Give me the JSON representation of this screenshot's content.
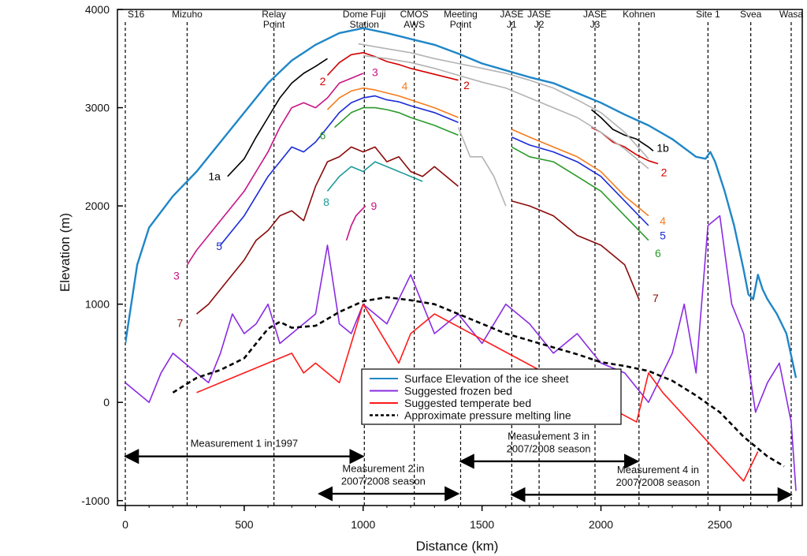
{
  "chart_data": {
    "type": "line",
    "xlabel": "Distance (km)",
    "ylabel": "Elevation (m)",
    "xlim": [
      0,
      2830
    ],
    "ylim": [
      -1050,
      4000
    ],
    "x_ticks": [
      0,
      500,
      1000,
      1500,
      2000,
      2500
    ],
    "y_ticks": [
      -1000,
      0,
      1000,
      2000,
      3000,
      4000
    ],
    "grid": false,
    "legend_position": "bottom-center",
    "stations": [
      {
        "x": 0,
        "lines": [
          "S16"
        ]
      },
      {
        "x": 260,
        "lines": [
          "Mizuho"
        ]
      },
      {
        "x": 625,
        "lines": [
          "Relay",
          "Point"
        ]
      },
      {
        "x": 1005,
        "lines": [
          "Dome Fuji",
          "Station"
        ]
      },
      {
        "x": 1215,
        "lines": [
          "CMOS",
          "AWS"
        ]
      },
      {
        "x": 1410,
        "lines": [
          "Meeting",
          "Point"
        ]
      },
      {
        "x": 1625,
        "lines": [
          "JASE",
          "J1"
        ]
      },
      {
        "x": 1740,
        "lines": [
          "JASE",
          "J2"
        ]
      },
      {
        "x": 1975,
        "lines": [
          "JASE",
          "J3"
        ]
      },
      {
        "x": 2160,
        "lines": [
          "Kohnen"
        ]
      },
      {
        "x": 2450,
        "lines": [
          "Site 1"
        ]
      },
      {
        "x": 2630,
        "lines": [
          "Svea"
        ]
      },
      {
        "x": 2800,
        "lines": [
          "Wasa"
        ]
      }
    ],
    "series": [
      {
        "name": "Surface Elevation of the ice sheet",
        "color": "#1f86c8",
        "x": [
          0,
          50,
          100,
          200,
          300,
          400,
          500,
          600,
          700,
          800,
          900,
          1000,
          1100,
          1200,
          1300,
          1400,
          1500,
          1600,
          1700,
          1800,
          1900,
          2000,
          2100,
          2200,
          2300,
          2400,
          2440,
          2460,
          2480,
          2520,
          2560,
          2600,
          2620,
          2640,
          2660,
          2680,
          2700,
          2740,
          2780,
          2820
        ],
        "y": [
          600,
          1400,
          1780,
          2100,
          2350,
          2650,
          2950,
          3250,
          3480,
          3640,
          3760,
          3810,
          3760,
          3700,
          3640,
          3550,
          3450,
          3380,
          3310,
          3250,
          3150,
          3050,
          2930,
          2820,
          2680,
          2500,
          2480,
          2550,
          2450,
          2150,
          1800,
          1350,
          1100,
          1050,
          1300,
          1150,
          1050,
          900,
          700,
          250
        ]
      },
      {
        "name": "Suggested frozen bed",
        "color": "#8a2be2",
        "x": [
          0,
          50,
          100,
          150,
          200,
          250,
          300,
          350,
          400,
          450,
          500,
          550,
          600,
          650,
          700,
          800,
          850,
          900,
          950,
          1000,
          1100,
          1200,
          1300,
          1400,
          1500,
          1600,
          1700,
          1800,
          1900,
          2000,
          2100,
          2200,
          2300,
          2350,
          2400,
          2450,
          2500,
          2550,
          2600,
          2650,
          2700,
          2750,
          2800,
          2820
        ],
        "y": [
          200,
          100,
          0,
          300,
          500,
          400,
          300,
          200,
          500,
          900,
          700,
          800,
          1000,
          600,
          700,
          900,
          1600,
          800,
          700,
          1000,
          800,
          1300,
          700,
          900,
          600,
          1000,
          800,
          500,
          700,
          400,
          300,
          0,
          500,
          1000,
          300,
          1800,
          1900,
          1000,
          700,
          -100,
          200,
          400,
          -200,
          -900
        ]
      },
      {
        "name": "Suggested temperate bed",
        "color": "#ff1a1a",
        "x": [
          300,
          400,
          700,
          750,
          800,
          900,
          950,
          1000,
          1050,
          1150,
          1200,
          1300,
          2150,
          2200,
          2260,
          2600,
          2660
        ],
        "y": [
          100,
          200,
          500,
          300,
          400,
          200,
          600,
          1000,
          800,
          400,
          700,
          900,
          -200,
          300,
          100,
          -800,
          -500
        ]
      },
      {
        "name": "Approximate pressure melting line",
        "color": "#000000",
        "dash": true,
        "x": [
          200,
          300,
          400,
          500,
          550,
          600,
          650,
          700,
          800,
          900,
          1000,
          1100,
          1200,
          1300,
          1400,
          1500,
          1600,
          1700,
          1800,
          1900,
          2000,
          2100,
          2200,
          2300,
          2400,
          2500,
          2600,
          2700,
          2770
        ],
        "y": [
          100,
          250,
          330,
          450,
          600,
          750,
          820,
          760,
          780,
          920,
          1030,
          1070,
          1040,
          1000,
          900,
          800,
          700,
          630,
          560,
          490,
          410,
          370,
          320,
          220,
          70,
          -100,
          -350,
          -550,
          -650
        ]
      },
      {
        "name": "",
        "color": "#000000",
        "label": "1a",
        "x": [
          430,
          500,
          550,
          600,
          650,
          700,
          750,
          800,
          850
        ],
        "y": [
          2300,
          2480,
          2700,
          2900,
          3100,
          3250,
          3350,
          3420,
          3500
        ]
      },
      {
        "name": "",
        "color": "#000000",
        "label": "1b",
        "x": [
          1960,
          2000,
          2050,
          2100,
          2150,
          2200,
          2220
        ],
        "y": [
          2980,
          2900,
          2780,
          2720,
          2680,
          2600,
          2560
        ]
      },
      {
        "name": "",
        "color": "#d40000",
        "label": "2",
        "x": [
          850,
          900,
          950,
          1000,
          1050,
          1100,
          1150,
          1200,
          1300,
          1400
        ],
        "y": [
          3330,
          3460,
          3540,
          3560,
          3520,
          3470,
          3440,
          3400,
          3340,
          3280
        ]
      },
      {
        "name": "",
        "color": "#d40000",
        "label": "2",
        "x": [
          1960,
          2000,
          2050,
          2100,
          2150,
          2200,
          2240
        ],
        "y": [
          2800,
          2750,
          2650,
          2600,
          2520,
          2460,
          2430
        ]
      },
      {
        "name": "",
        "color": "#b3b3b3",
        "label": "",
        "x": [
          980,
          1100,
          1200,
          1300,
          1400,
          1500,
          1600,
          1700,
          1800,
          1900,
          2000,
          2100,
          2200
        ],
        "y": [
          3650,
          3600,
          3560,
          3500,
          3450,
          3400,
          3350,
          3280,
          3200,
          3080,
          2950,
          2750,
          2480
        ]
      },
      {
        "name": "",
        "color": "#b3b3b3",
        "label": "",
        "x": [
          1000,
          1100,
          1200,
          1300,
          1400,
          1500,
          1600,
          1700,
          1800,
          1900,
          2000,
          2100,
          2200
        ],
        "y": [
          3530,
          3500,
          3460,
          3400,
          3330,
          3260,
          3200,
          3100,
          3000,
          2900,
          2750,
          2580,
          2380
        ]
      },
      {
        "name": "",
        "color": "#b3b3b3",
        "label": "",
        "x": [
          1400,
          1450,
          1500,
          1550,
          1600
        ],
        "y": [
          2800,
          2500,
          2500,
          2300,
          2000
        ]
      },
      {
        "name": "",
        "color": "#c71585",
        "label": "3",
        "x": [
          260,
          300,
          350,
          400,
          450,
          500,
          550,
          600,
          650,
          700,
          750,
          800,
          850,
          900,
          950,
          1000
        ],
        "y": [
          1400,
          1550,
          1700,
          1850,
          2000,
          2150,
          2350,
          2550,
          2800,
          3000,
          3050,
          3000,
          3100,
          3250,
          3300,
          3350
        ]
      },
      {
        "name": "",
        "color": "#f57c1f",
        "label": "4",
        "x": [
          850,
          900,
          950,
          1000,
          1050,
          1100,
          1150,
          1200,
          1300,
          1400
        ],
        "y": [
          2980,
          3100,
          3170,
          3200,
          3180,
          3150,
          3120,
          3080,
          3000,
          2900
        ]
      },
      {
        "name": "",
        "color": "#f57c1f",
        "label": "4",
        "x": [
          1625,
          1700,
          1800,
          1900,
          2000,
          2100,
          2200
        ],
        "y": [
          2780,
          2700,
          2600,
          2500,
          2350,
          2100,
          1900
        ]
      },
      {
        "name": "",
        "color": "#1a2bd6",
        "label": "5",
        "x": [
          400,
          450,
          500,
          550,
          600,
          650,
          700,
          750,
          800,
          850,
          900,
          950,
          1000,
          1050,
          1100,
          1150,
          1200,
          1300,
          1400
        ],
        "y": [
          1600,
          1750,
          1900,
          2100,
          2300,
          2450,
          2600,
          2550,
          2650,
          2800,
          2950,
          3050,
          3100,
          3120,
          3080,
          3060,
          3020,
          2950,
          2850
        ]
      },
      {
        "name": "",
        "color": "#1a2bd6",
        "label": "5",
        "x": [
          1625,
          1700,
          1800,
          1900,
          2000,
          2100,
          2200
        ],
        "y": [
          2700,
          2620,
          2550,
          2450,
          2300,
          2050,
          1800
        ]
      },
      {
        "name": "",
        "color": "#2a9a2a",
        "label": "6",
        "x": [
          880,
          950,
          1000,
          1050,
          1100,
          1150,
          1200,
          1300,
          1400
        ],
        "y": [
          2800,
          2950,
          3000,
          3000,
          2980,
          2950,
          2900,
          2820,
          2720
        ]
      },
      {
        "name": "",
        "color": "#2a9a2a",
        "label": "6",
        "x": [
          1625,
          1700,
          1800,
          1900,
          2000,
          2100,
          2200
        ],
        "y": [
          2600,
          2500,
          2450,
          2300,
          2150,
          1900,
          1650
        ]
      },
      {
        "name": "",
        "color": "#8b0a0a",
        "label": "7",
        "x": [
          300,
          350,
          400,
          450,
          500,
          550,
          600,
          650,
          700,
          750,
          800,
          850,
          900,
          950,
          1000,
          1050,
          1100,
          1150,
          1200,
          1250,
          1300,
          1350,
          1400
        ],
        "y": [
          900,
          1000,
          1150,
          1300,
          1450,
          1650,
          1750,
          1900,
          1950,
          1850,
          2200,
          2450,
          2500,
          2600,
          2550,
          2600,
          2450,
          2500,
          2350,
          2300,
          2400,
          2300,
          2200
        ]
      },
      {
        "name": "",
        "color": "#8b0a0a",
        "label": "7",
        "x": [
          1625,
          1700,
          1800,
          1900,
          2000,
          2100,
          2160
        ],
        "y": [
          2050,
          2000,
          1900,
          1700,
          1600,
          1400,
          1050
        ]
      },
      {
        "name": "",
        "color": "#1f9a9a",
        "label": "8",
        "x": [
          850,
          900,
          950,
          1000,
          1050,
          1100,
          1150,
          1200,
          1250
        ],
        "y": [
          2150,
          2300,
          2400,
          2350,
          2450,
          2400,
          2350,
          2300,
          2250
        ]
      },
      {
        "name": "",
        "color": "#c71585",
        "label": "9",
        "x": [
          930,
          950,
          970,
          990,
          1010
        ],
        "y": [
          1650,
          1800,
          1900,
          1950,
          2000
        ]
      }
    ],
    "curve_labels": [
      {
        "text": "1a",
        "x": 375,
        "y": 2260,
        "color": "#000000"
      },
      {
        "text": "2",
        "x": 830,
        "y": 3230,
        "color": "#d40000"
      },
      {
        "text": "3",
        "x": 1050,
        "y": 3320,
        "color": "#c71585"
      },
      {
        "text": "4",
        "x": 1175,
        "y": 3180,
        "color": "#f57c1f"
      },
      {
        "text": "2",
        "x": 1435,
        "y": 3190,
        "color": "#d40000"
      },
      {
        "text": "6",
        "x": 830,
        "y": 2680,
        "color": "#2a9a2a"
      },
      {
        "text": "8",
        "x": 845,
        "y": 2000,
        "color": "#1f9a9a"
      },
      {
        "text": "9",
        "x": 1045,
        "y": 1960,
        "color": "#c71585"
      },
      {
        "text": "5",
        "x": 395,
        "y": 1550,
        "color": "#1a2bd6"
      },
      {
        "text": "3",
        "x": 215,
        "y": 1250,
        "color": "#c71585"
      },
      {
        "text": "7",
        "x": 230,
        "y": 770,
        "color": "#8b0a0a"
      },
      {
        "text": "1b",
        "x": 2260,
        "y": 2550,
        "color": "#000000"
      },
      {
        "text": "2",
        "x": 2265,
        "y": 2300,
        "color": "#d40000"
      },
      {
        "text": "4",
        "x": 2260,
        "y": 1810,
        "color": "#f57c1f"
      },
      {
        "text": "5",
        "x": 2260,
        "y": 1660,
        "color": "#1a2bd6"
      },
      {
        "text": "6",
        "x": 2240,
        "y": 1480,
        "color": "#2a9a2a"
      },
      {
        "text": "7",
        "x": 2230,
        "y": 1020,
        "color": "#8b0a0a"
      }
    ],
    "measurements": [
      {
        "label_lines": [
          "Measurement 1 in 1997"
        ],
        "x0": 0,
        "x1": 1000,
        "y": -550,
        "text_x": 500,
        "text_y": -450
      },
      {
        "label_lines": [
          "Measurement 2 in",
          "2007/2008 season"
        ],
        "x0": 815,
        "x1": 1400,
        "y": -930,
        "text_x": 1085,
        "text_y": -710
      },
      {
        "label_lines": [
          "Measurement 3 in",
          "2007/2008 season"
        ],
        "x0": 1410,
        "x1": 2155,
        "y": -600,
        "text_x": 1780,
        "text_y": -380
      },
      {
        "label_lines": [
          "Measurement 4 in",
          "2007/2008 season"
        ],
        "x0": 1625,
        "x1": 2800,
        "y": -940,
        "text_x": 2240,
        "text_y": -720
      }
    ]
  }
}
